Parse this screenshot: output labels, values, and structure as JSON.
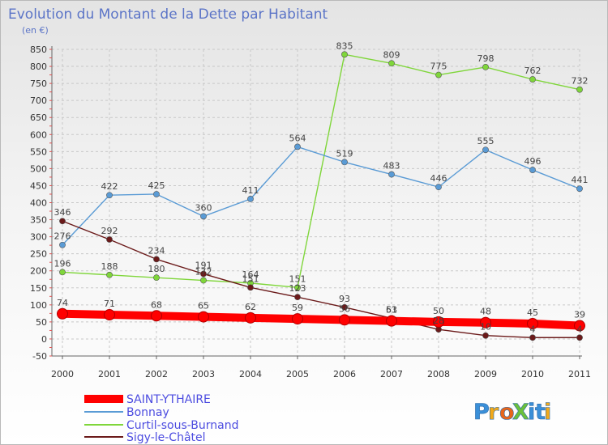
{
  "chart_data": {
    "type": "line",
    "title": "Evolution du Montant de la Dette par Habitant",
    "subtitle": "(en €)",
    "categories": [
      "2000",
      "2001",
      "2002",
      "2003",
      "2004",
      "2005",
      "2006",
      "2007",
      "2008",
      "2009",
      "2010",
      "2011"
    ],
    "ylim": [
      -50,
      850
    ],
    "yticks": [
      "-50",
      "0",
      "50",
      "100",
      "150",
      "200",
      "250",
      "300",
      "350",
      "400",
      "450",
      "500",
      "550",
      "600",
      "650",
      "700",
      "750",
      "800",
      "850"
    ],
    "grid": true,
    "legend_position": "bottom-left",
    "series": [
      {
        "name": "SAINT-YTHAIRE",
        "color": "#ff0000",
        "values": [
          74,
          71,
          68,
          65,
          62,
          59,
          56,
          53,
          50,
          48,
          45,
          39
        ],
        "labels": [
          "74",
          "71",
          "68",
          "65",
          "62",
          "59",
          "56",
          "53",
          "50",
          "48",
          "45",
          "39"
        ]
      },
      {
        "name": "Bonnay",
        "color": "#5a9bd5",
        "values": [
          276,
          422,
          425,
          360,
          411,
          564,
          519,
          483,
          446,
          555,
          496,
          441
        ],
        "labels": [
          "276",
          "422",
          "425",
          "360",
          "411",
          "564",
          "519",
          "483",
          "446",
          "555",
          "496",
          "441"
        ]
      },
      {
        "name": "Curtil-sous-Burnand",
        "color": "#7fd63a",
        "values": [
          196,
          188,
          180,
          172,
          164,
          151,
          835,
          809,
          775,
          798,
          762,
          732
        ],
        "labels": [
          "196",
          "188",
          "180",
          "172",
          "164",
          "151",
          "835",
          "809",
          "775",
          "798",
          "762",
          "732"
        ]
      },
      {
        "name": "Sigy-le-Châtel",
        "color": "#6b1a1a",
        "values": [
          346,
          292,
          234,
          191,
          151,
          123,
          93,
          61,
          28,
          10,
          4,
          4
        ],
        "labels": [
          "346",
          "292",
          "234",
          "191",
          "151",
          "123",
          "93",
          "61",
          "28",
          "10",
          "4",
          "4"
        ]
      }
    ]
  },
  "logo": {
    "text": "ProXiti"
  }
}
